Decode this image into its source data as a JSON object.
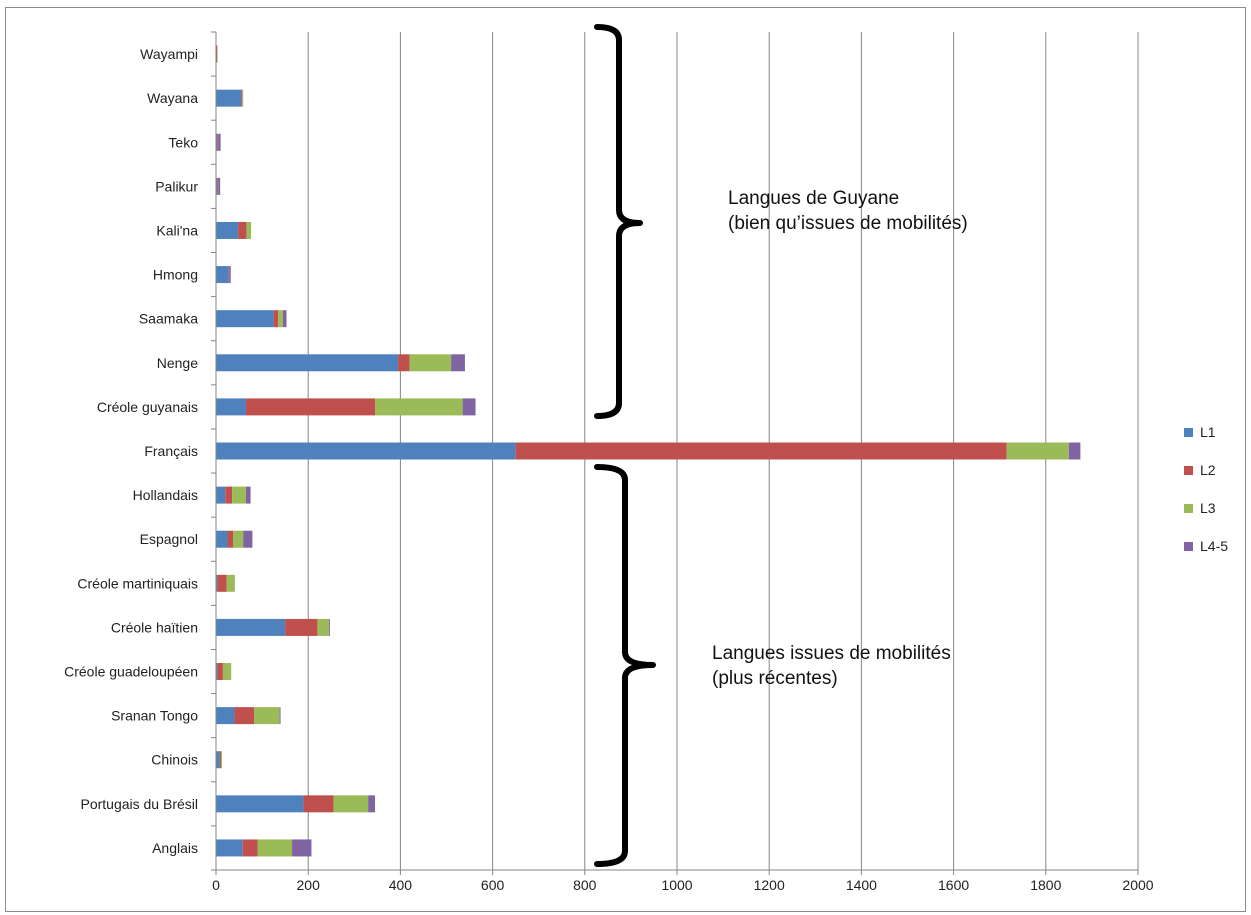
{
  "chart_data": {
    "type": "bar",
    "orientation": "horizontal",
    "stacked": true,
    "title": "",
    "xlabel": "",
    "ylabel": "",
    "xlim": [
      0,
      2000
    ],
    "x_ticks": [
      0,
      200,
      400,
      600,
      800,
      1000,
      1200,
      1400,
      1600,
      1800,
      2000
    ],
    "grid": "vertical",
    "legend_position": "right",
    "categories": [
      "Wayampi",
      "Wayana",
      "Teko",
      "Palikur",
      "Kali'na",
      "Hmong",
      "Saamaka",
      "Nenge",
      "Créole guyanais",
      "Français",
      "Hollandais",
      "Espagnol",
      "Créole martiniquais",
      "Créole haïtien",
      "Créole guadeloupéen",
      "Sranan Tongo",
      "Chinois",
      "Portugais du Brésil",
      "Anglais"
    ],
    "series": [
      {
        "name": "L1",
        "color": "#4f81bd",
        "values": [
          0,
          55,
          3,
          3,
          48,
          28,
          125,
          395,
          65,
          650,
          20,
          25,
          3,
          150,
          3,
          40,
          8,
          190,
          58
        ]
      },
      {
        "name": "L2",
        "color": "#c0504d",
        "values": [
          3,
          2,
          2,
          2,
          18,
          2,
          10,
          25,
          280,
          1065,
          15,
          12,
          20,
          70,
          12,
          43,
          3,
          65,
          32
        ]
      },
      {
        "name": "L3",
        "color": "#9bbb59",
        "values": [
          0,
          2,
          0,
          0,
          10,
          0,
          10,
          90,
          190,
          135,
          30,
          22,
          18,
          25,
          18,
          55,
          2,
          75,
          75
        ]
      },
      {
        "name": "L4-5",
        "color": "#8064a2",
        "values": [
          0,
          0,
          5,
          4,
          0,
          2,
          8,
          30,
          28,
          25,
          10,
          20,
          0,
          2,
          0,
          2,
          0,
          15,
          42
        ]
      }
    ]
  },
  "annotations": {
    "top_group": [
      "Langues de Guyane",
      "(bien qu’issues de mobilités)"
    ],
    "bottom_group": [
      "Langues issues de mobilités",
      "(plus récentes)"
    ]
  }
}
